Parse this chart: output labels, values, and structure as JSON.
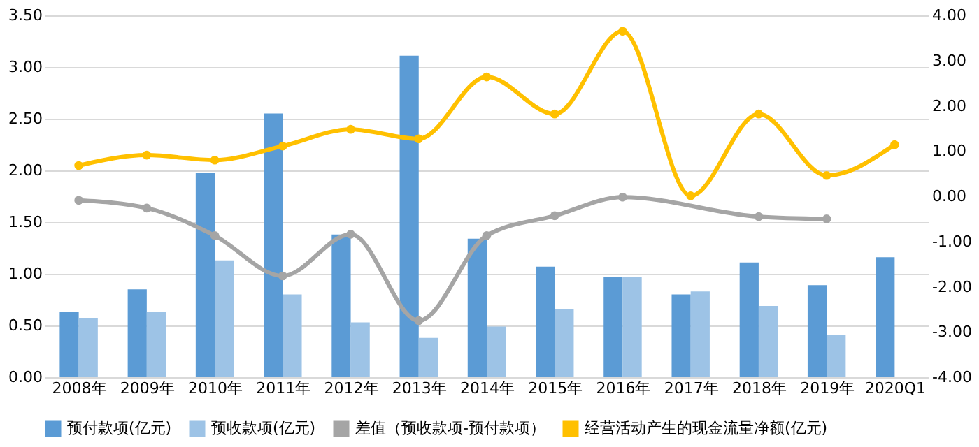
{
  "chart_data": {
    "type": "bar",
    "categories": [
      "2008年",
      "2009年",
      "2010年",
      "2011年",
      "2012年",
      "2013年",
      "2014年",
      "2015年",
      "2016年",
      "2017年",
      "2018年",
      "2019年",
      "2020Q1"
    ],
    "series": [
      {
        "name": "预付款项(亿元)",
        "color": "#5b9bd5",
        "values": [
          0.63,
          0.85,
          1.98,
          2.55,
          1.38,
          3.11,
          1.34,
          1.07,
          0.97,
          0.8,
          1.11,
          0.89,
          1.16
        ]
      },
      {
        "name": "预收款项(亿元)",
        "color": "#9dc3e6",
        "values": [
          0.57,
          0.63,
          1.13,
          0.8,
          0.53,
          0.38,
          0.49,
          0.66,
          0.97,
          0.83,
          0.69,
          0.41,
          null
        ]
      },
      {
        "name": "差值（预收款项-预付款项）",
        "color": "#a5a5a5",
        "type": "line",
        "axis": "y2",
        "marker": "circle",
        "values": [
          -0.09,
          -0.26,
          -0.87,
          -1.76,
          -0.84,
          -2.75,
          -0.87,
          -0.43,
          -0.02,
          null,
          -0.45,
          -0.5,
          null
        ]
      },
      {
        "name": "经营活动产生的现金流量净额(亿元)",
        "color": "#ffc000",
        "type": "line",
        "axis": "y2",
        "marker": "circle",
        "values": [
          0.68,
          0.91,
          0.8,
          1.11,
          1.48,
          1.27,
          2.64,
          1.82,
          3.65,
          0.01,
          1.82,
          0.46,
          1.14
        ]
      }
    ],
    "ylim": [
      0,
      3.5
    ],
    "yticks": [
      {
        "value": 0,
        "label": "0.00"
      },
      {
        "value": 0.5,
        "label": "0.50"
      },
      {
        "value": 1,
        "label": "1.00"
      },
      {
        "value": 1.5,
        "label": "1.50"
      },
      {
        "value": 2,
        "label": "2.00"
      },
      {
        "value": 2.5,
        "label": "2.50"
      },
      {
        "value": 3,
        "label": "3.00"
      },
      {
        "value": 3.5,
        "label": "3.50"
      }
    ],
    "y2lim": [
      -4,
      4
    ],
    "y2ticks": [
      {
        "value": -4,
        "label": "-4.00"
      },
      {
        "value": -3,
        "label": "-3.00"
      },
      {
        "value": -2,
        "label": "-2.00"
      },
      {
        "value": -1,
        "label": "-1.00"
      },
      {
        "value": 0,
        "label": "0.00"
      },
      {
        "value": 1,
        "label": "1.00"
      },
      {
        "value": 2,
        "label": "2.00"
      },
      {
        "value": 3,
        "label": "3.00"
      },
      {
        "value": 4,
        "label": "4.00"
      }
    ],
    "grid": "y",
    "legend": "bottom"
  }
}
